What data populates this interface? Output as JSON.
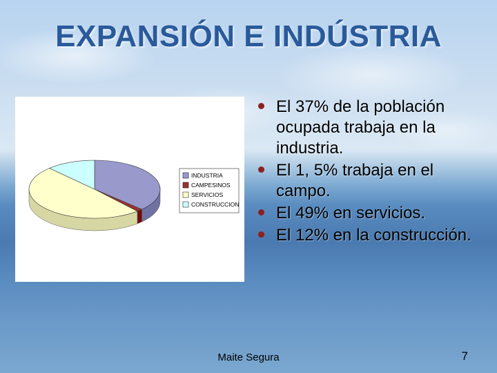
{
  "title": "EXPANSIÓN E INDÚSTRIA",
  "chart": {
    "type": "pie",
    "background_color": "#ffffff",
    "slices": [
      {
        "label": "INDUSTRIA",
        "value": 37,
        "color": "#9999cc"
      },
      {
        "label": "CAMPESINOS",
        "value": 1.5,
        "color": "#993333"
      },
      {
        "label": "SERVICIOS",
        "value": 49,
        "color": "#ffffcc"
      },
      {
        "label": "CONSTRUCCION",
        "value": 12,
        "color": "#ccffff"
      }
    ],
    "legend": {
      "items": [
        "INDUSTRIA",
        "CAMPESINOS",
        "SERVICIOS",
        "CONSTRUCCION"
      ],
      "box_fill": "#ffffff",
      "box_stroke": "#000000"
    },
    "side_color": "#808080"
  },
  "bullets": [
    "El 37% de la población ocupada trabaja en la industria.",
    "El 1, 5% trabaja en el campo.",
    "El 49% en servicios.",
    "El 12% en la construcción."
  ],
  "bullet_color": "#8b2020",
  "footer": {
    "author": "Maite Segura",
    "page": "7"
  }
}
